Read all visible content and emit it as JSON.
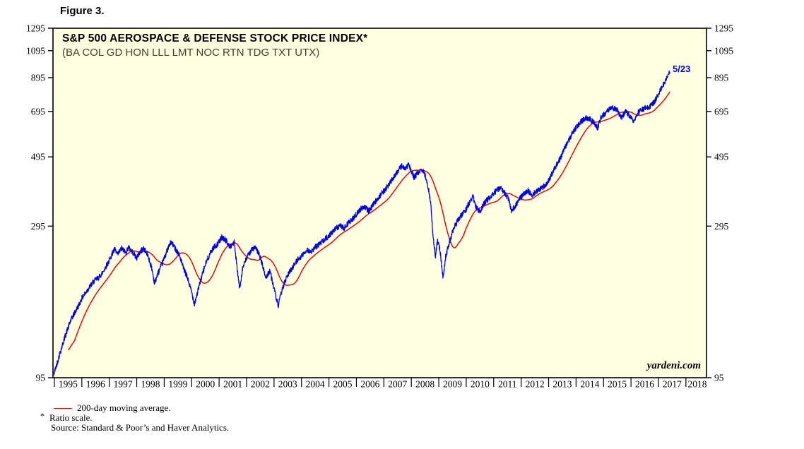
{
  "figure_label": "Figure 3.",
  "watermark": "yardeni.com",
  "annotation": {
    "label": "5/23",
    "color": "#0000dd"
  },
  "legend": {
    "ma_label": "200-day moving average."
  },
  "footnotes": {
    "asterisk": "*",
    "ratio": "Ratio scale.",
    "source": "Source: Standard & Poor’s and Haver Analytics."
  },
  "chart_data": {
    "type": "line",
    "title": "S&P 500 AEROSPACE & DEFENSE STOCK PRICE INDEX*",
    "subtitle": "(BA COL GD HON LLL LMT NOC RTN TDG TXT UTX)",
    "scale": "log (ratio scale)",
    "plot_bg": "#ffffe1",
    "frame_color": "#000000",
    "ylim": [
      95,
      1295
    ],
    "yticks": [
      95,
      295,
      495,
      695,
      895,
      1095,
      1295
    ],
    "xlim": [
      1994.95,
      2018.75
    ],
    "xticks": [
      1995,
      1996,
      1997,
      1998,
      1999,
      2000,
      2001,
      2002,
      2003,
      2004,
      2005,
      2006,
      2007,
      2008,
      2009,
      2010,
      2011,
      2012,
      2013,
      2014,
      2015,
      2016,
      2017,
      2018
    ],
    "grid": false,
    "legend_position": "below-left",
    "last_point_label": "5/23",
    "last_value_approx": 945,
    "series": [
      {
        "name": "S&P 500 Aerospace & Defense Stock Price Index",
        "color": "#0000dd",
        "points": [
          [
            1994.95,
            97
          ],
          [
            1995.0,
            99
          ],
          [
            1995.1,
            106
          ],
          [
            1995.2,
            114
          ],
          [
            1995.3,
            122
          ],
          [
            1995.4,
            130
          ],
          [
            1995.5,
            138
          ],
          [
            1995.6,
            146
          ],
          [
            1995.7,
            152
          ],
          [
            1995.8,
            158
          ],
          [
            1995.9,
            164
          ],
          [
            1996.0,
            172
          ],
          [
            1996.15,
            180
          ],
          [
            1996.3,
            188
          ],
          [
            1996.45,
            196
          ],
          [
            1996.6,
            200
          ],
          [
            1996.75,
            208
          ],
          [
            1996.9,
            220
          ],
          [
            1997.0,
            228
          ],
          [
            1997.1,
            240
          ],
          [
            1997.2,
            248
          ],
          [
            1997.3,
            238
          ],
          [
            1997.45,
            250
          ],
          [
            1997.6,
            242
          ],
          [
            1997.7,
            252
          ],
          [
            1997.8,
            246
          ],
          [
            1997.9,
            240
          ],
          [
            1998.0,
            232
          ],
          [
            1998.1,
            242
          ],
          [
            1998.25,
            250
          ],
          [
            1998.4,
            238
          ],
          [
            1998.55,
            215
          ],
          [
            1998.65,
            192
          ],
          [
            1998.75,
            205
          ],
          [
            1998.9,
            220
          ],
          [
            1999.0,
            232
          ],
          [
            1999.1,
            245
          ],
          [
            1999.25,
            262
          ],
          [
            1999.4,
            250
          ],
          [
            1999.55,
            238
          ],
          [
            1999.7,
            215
          ],
          [
            1999.85,
            200
          ],
          [
            2000.0,
            180
          ],
          [
            2000.1,
            165
          ],
          [
            2000.2,
            178
          ],
          [
            2000.35,
            200
          ],
          [
            2000.5,
            222
          ],
          [
            2000.65,
            238
          ],
          [
            2000.8,
            252
          ],
          [
            2000.95,
            258
          ],
          [
            2001.1,
            272
          ],
          [
            2001.25,
            265
          ],
          [
            2001.4,
            252
          ],
          [
            2001.55,
            262
          ],
          [
            2001.68,
            205
          ],
          [
            2001.75,
            185
          ],
          [
            2001.85,
            215
          ],
          [
            2002.0,
            232
          ],
          [
            2002.15,
            245
          ],
          [
            2002.3,
            252
          ],
          [
            2002.45,
            240
          ],
          [
            2002.55,
            225
          ],
          [
            2002.7,
            200
          ],
          [
            2002.85,
            212
          ],
          [
            2003.0,
            185
          ],
          [
            2003.15,
            162
          ],
          [
            2003.3,
            185
          ],
          [
            2003.45,
            200
          ],
          [
            2003.6,
            212
          ],
          [
            2003.75,
            222
          ],
          [
            2003.9,
            232
          ],
          [
            2004.05,
            238
          ],
          [
            2004.2,
            248
          ],
          [
            2004.35,
            242
          ],
          [
            2004.5,
            252
          ],
          [
            2004.65,
            258
          ],
          [
            2004.8,
            266
          ],
          [
            2004.95,
            272
          ],
          [
            2005.1,
            280
          ],
          [
            2005.25,
            290
          ],
          [
            2005.4,
            296
          ],
          [
            2005.55,
            290
          ],
          [
            2005.7,
            302
          ],
          [
            2005.85,
            310
          ],
          [
            2006.0,
            322
          ],
          [
            2006.15,
            335
          ],
          [
            2006.3,
            342
          ],
          [
            2006.45,
            330
          ],
          [
            2006.6,
            345
          ],
          [
            2006.75,
            360
          ],
          [
            2006.9,
            375
          ],
          [
            2007.05,
            388
          ],
          [
            2007.2,
            405
          ],
          [
            2007.35,
            425
          ],
          [
            2007.5,
            445
          ],
          [
            2007.65,
            462
          ],
          [
            2007.78,
            452
          ],
          [
            2007.9,
            468
          ],
          [
            2008.0,
            445
          ],
          [
            2008.1,
            425
          ],
          [
            2008.25,
            440
          ],
          [
            2008.4,
            452
          ],
          [
            2008.5,
            430
          ],
          [
            2008.6,
            400
          ],
          [
            2008.7,
            355
          ],
          [
            2008.8,
            270
          ],
          [
            2008.88,
            235
          ],
          [
            2008.95,
            265
          ],
          [
            2009.05,
            245
          ],
          [
            2009.15,
            200
          ],
          [
            2009.25,
            235
          ],
          [
            2009.4,
            265
          ],
          [
            2009.55,
            290
          ],
          [
            2009.7,
            310
          ],
          [
            2009.85,
            322
          ],
          [
            2010.0,
            335
          ],
          [
            2010.1,
            350
          ],
          [
            2010.25,
            368
          ],
          [
            2010.35,
            340
          ],
          [
            2010.5,
            330
          ],
          [
            2010.65,
            350
          ],
          [
            2010.8,
            362
          ],
          [
            2010.95,
            372
          ],
          [
            2011.1,
            385
          ],
          [
            2011.25,
            392
          ],
          [
            2011.4,
            378
          ],
          [
            2011.55,
            360
          ],
          [
            2011.65,
            330
          ],
          [
            2011.8,
            345
          ],
          [
            2011.95,
            362
          ],
          [
            2012.1,
            375
          ],
          [
            2012.25,
            385
          ],
          [
            2012.4,
            372
          ],
          [
            2012.55,
            382
          ],
          [
            2012.7,
            390
          ],
          [
            2012.85,
            398
          ],
          [
            2013.0,
            415
          ],
          [
            2013.15,
            442
          ],
          [
            2013.3,
            468
          ],
          [
            2013.45,
            495
          ],
          [
            2013.6,
            532
          ],
          [
            2013.75,
            565
          ],
          [
            2013.9,
            598
          ],
          [
            2014.05,
            625
          ],
          [
            2014.2,
            648
          ],
          [
            2014.35,
            662
          ],
          [
            2014.5,
            655
          ],
          [
            2014.65,
            640
          ],
          [
            2014.78,
            615
          ],
          [
            2014.9,
            660
          ],
          [
            2015.05,
            685
          ],
          [
            2015.2,
            705
          ],
          [
            2015.35,
            715
          ],
          [
            2015.5,
            700
          ],
          [
            2015.65,
            665
          ],
          [
            2015.8,
            695
          ],
          [
            2015.95,
            675
          ],
          [
            2016.1,
            640
          ],
          [
            2016.25,
            690
          ],
          [
            2016.4,
            705
          ],
          [
            2016.55,
            715
          ],
          [
            2016.7,
            722
          ],
          [
            2016.85,
            745
          ],
          [
            2017.0,
            790
          ],
          [
            2017.1,
            825
          ],
          [
            2017.2,
            855
          ],
          [
            2017.3,
            885
          ],
          [
            2017.35,
            915
          ],
          [
            2017.42,
            945
          ]
        ]
      },
      {
        "name": "200-day moving average",
        "color": "#e00b0b",
        "derived": "trailing 200-day (about 0.8 year) average of the index series"
      }
    ]
  }
}
